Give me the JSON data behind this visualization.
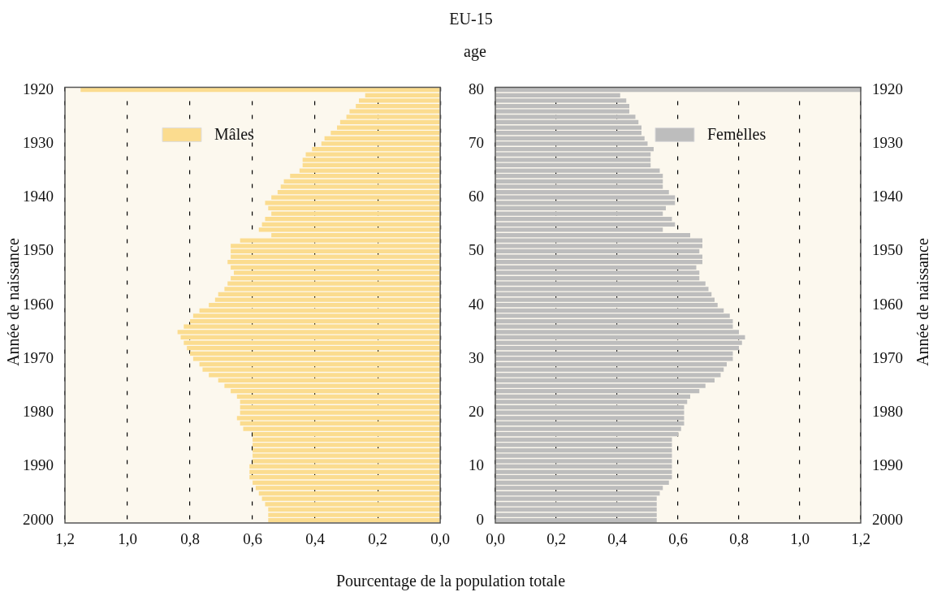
{
  "chart_data": [
    {
      "type": "bar",
      "orientation": "horizontal",
      "title": "EU-15",
      "xlabel": "Pourcentage de la  population totale",
      "ylabel": "Année de naissance",
      "categories": [
        "1920",
        null,
        null,
        null,
        null,
        null,
        null,
        null,
        null,
        null,
        "1930",
        null,
        null,
        null,
        null,
        null,
        null,
        null,
        null,
        null,
        "1940",
        null,
        null,
        null,
        null,
        null,
        null,
        null,
        null,
        null,
        "1950",
        null,
        null,
        null,
        null,
        null,
        null,
        null,
        null,
        null,
        "1960",
        null,
        null,
        null,
        null,
        null,
        null,
        null,
        null,
        null,
        "1970",
        null,
        null,
        null,
        null,
        null,
        null,
        null,
        null,
        null,
        "1980",
        null,
        null,
        null,
        null,
        null,
        null,
        null,
        null,
        null,
        "1990",
        null,
        null,
        null,
        null,
        null,
        null,
        null,
        null,
        null,
        "2000"
      ],
      "series": [
        {
          "name": "Mâles",
          "color": "#fbdc8f",
          "values": [
            1.15,
            0.24,
            0.26,
            0.27,
            0.29,
            0.3,
            0.32,
            0.33,
            0.35,
            0.37,
            0.38,
            0.41,
            0.43,
            0.44,
            0.44,
            0.45,
            0.48,
            0.5,
            0.51,
            0.52,
            0.54,
            0.56,
            0.55,
            0.54,
            0.56,
            0.57,
            0.58,
            0.54,
            0.64,
            0.67,
            0.67,
            0.67,
            0.68,
            0.67,
            0.66,
            0.67,
            0.68,
            0.69,
            0.71,
            0.72,
            0.74,
            0.77,
            0.79,
            0.8,
            0.82,
            0.84,
            0.83,
            0.82,
            0.81,
            0.8,
            0.79,
            0.77,
            0.76,
            0.74,
            0.71,
            0.69,
            0.67,
            0.65,
            0.64,
            0.64,
            0.64,
            0.65,
            0.64,
            0.63,
            0.6,
            0.6,
            0.6,
            0.6,
            0.6,
            0.6,
            0.61,
            0.61,
            0.61,
            0.6,
            0.59,
            0.58,
            0.57,
            0.56,
            0.55,
            0.55,
            0.55
          ]
        }
      ],
      "xlim": [
        1.2,
        0
      ],
      "xticks": [
        {
          "value": 1.2,
          "label": "1,2"
        },
        {
          "value": 1.0,
          "label": "1,0"
        },
        {
          "value": 0.8,
          "label": "0,8"
        },
        {
          "value": 0.6,
          "label": "0,6"
        },
        {
          "value": 0.4,
          "label": "0,4"
        },
        {
          "value": 0.2,
          "label": "0,2"
        },
        {
          "value": 0,
          "label": "0,0"
        }
      ],
      "grid": "x",
      "legend": "top left"
    },
    {
      "type": "bar",
      "orientation": "horizontal",
      "ylabel": "age",
      "y2label": "Année de naissance",
      "categories": [
        "80",
        null,
        null,
        null,
        null,
        null,
        null,
        null,
        null,
        null,
        "70",
        null,
        null,
        null,
        null,
        null,
        null,
        null,
        null,
        null,
        "60",
        null,
        null,
        null,
        null,
        null,
        null,
        null,
        null,
        null,
        "50",
        null,
        null,
        null,
        null,
        null,
        null,
        null,
        null,
        null,
        "40",
        null,
        null,
        null,
        null,
        null,
        null,
        null,
        null,
        null,
        "30",
        null,
        null,
        null,
        null,
        null,
        null,
        null,
        null,
        null,
        "20",
        null,
        null,
        null,
        null,
        null,
        null,
        null,
        null,
        null,
        "10",
        null,
        null,
        null,
        null,
        null,
        null,
        null,
        null,
        null,
        "0"
      ],
      "y2_categories": [
        "1920",
        null,
        null,
        null,
        null,
        null,
        null,
        null,
        null,
        null,
        "1930",
        null,
        null,
        null,
        null,
        null,
        null,
        null,
        null,
        null,
        "1940",
        null,
        null,
        null,
        null,
        null,
        null,
        null,
        null,
        null,
        "1950",
        null,
        null,
        null,
        null,
        null,
        null,
        null,
        null,
        null,
        "1960",
        null,
        null,
        null,
        null,
        null,
        null,
        null,
        null,
        null,
        "1970",
        null,
        null,
        null,
        null,
        null,
        null,
        null,
        null,
        null,
        "1980",
        null,
        null,
        null,
        null,
        null,
        null,
        null,
        null,
        null,
        "1990",
        null,
        null,
        null,
        null,
        null,
        null,
        null,
        null,
        null,
        "2000"
      ],
      "series": [
        {
          "name": "Femelles",
          "color": "#bdbdbd",
          "values": [
            1.2,
            0.41,
            0.43,
            0.44,
            0.44,
            0.46,
            0.47,
            0.48,
            0.48,
            0.49,
            0.5,
            0.52,
            0.51,
            0.51,
            0.51,
            0.54,
            0.55,
            0.55,
            0.55,
            0.57,
            0.59,
            0.59,
            0.56,
            0.55,
            0.58,
            0.59,
            0.55,
            0.64,
            0.68,
            0.68,
            0.67,
            0.68,
            0.68,
            0.66,
            0.67,
            0.67,
            0.69,
            0.7,
            0.71,
            0.72,
            0.73,
            0.75,
            0.77,
            0.78,
            0.78,
            0.8,
            0.82,
            0.81,
            0.8,
            0.78,
            0.78,
            0.76,
            0.75,
            0.74,
            0.72,
            0.69,
            0.67,
            0.64,
            0.63,
            0.62,
            0.62,
            0.62,
            0.62,
            0.61,
            0.6,
            0.58,
            0.58,
            0.58,
            0.58,
            0.58,
            0.58,
            0.58,
            0.58,
            0.57,
            0.55,
            0.54,
            0.53,
            0.53,
            0.53,
            0.53,
            0.53
          ]
        }
      ],
      "xlim": [
        0,
        1.2
      ],
      "xticks": [
        {
          "value": 0,
          "label": "0,0"
        },
        {
          "value": 0.2,
          "label": "0,2"
        },
        {
          "value": 0.4,
          "label": "0,4"
        },
        {
          "value": 0.6,
          "label": "0,6"
        },
        {
          "value": 0.8,
          "label": "0,8"
        },
        {
          "value": 1.0,
          "label": "1,0"
        },
        {
          "value": 1.2,
          "label": "1,2"
        }
      ],
      "grid": "x",
      "legend": "top right"
    }
  ]
}
